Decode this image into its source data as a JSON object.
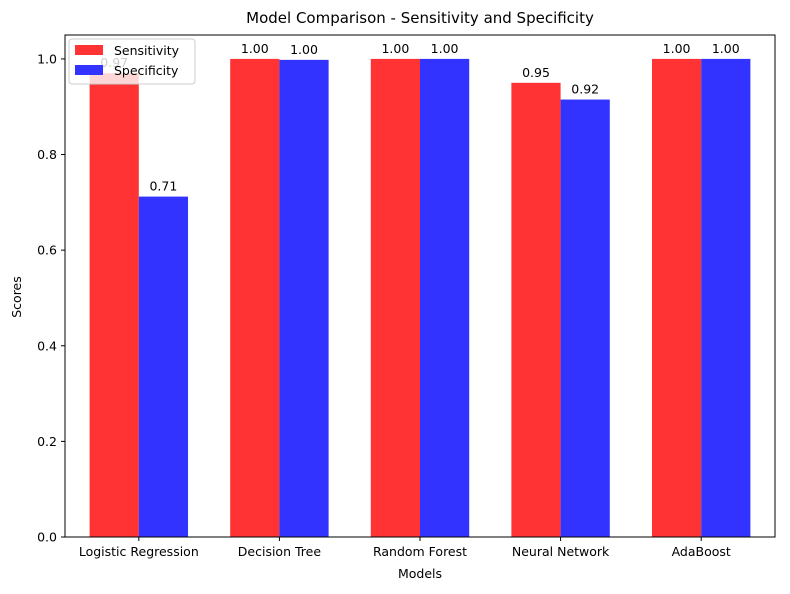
{
  "chart_data": {
    "type": "bar",
    "title": "Model Comparison - Sensitivity and Specificity",
    "xlabel": "Models",
    "ylabel": "Scores",
    "categories": [
      "Logistic Regression",
      "Decision Tree",
      "Random Forest",
      "Neural Network",
      "AdaBoost"
    ],
    "series": [
      {
        "name": "Sensitivity",
        "color": "#ff3333",
        "values": [
          0.97,
          1.0,
          1.0,
          0.95,
          1.0
        ],
        "labels": [
          "0.97",
          "1.00",
          "1.00",
          "0.95",
          "1.00"
        ]
      },
      {
        "name": "Specificity",
        "color": "#3333ff",
        "values": [
          0.712,
          0.998,
          1.0,
          0.915,
          1.0
        ],
        "labels": [
          "0.71",
          "1.00",
          "1.00",
          "0.92",
          "1.00"
        ]
      }
    ],
    "ylim": [
      0,
      1.05
    ],
    "yticks": [
      0.0,
      0.2,
      0.4,
      0.6,
      0.8,
      1.0
    ],
    "ytick_labels": [
      "0.0",
      "0.2",
      "0.4",
      "0.6",
      "0.8",
      "1.0"
    ],
    "grid": false,
    "legend_position": "top-left"
  }
}
